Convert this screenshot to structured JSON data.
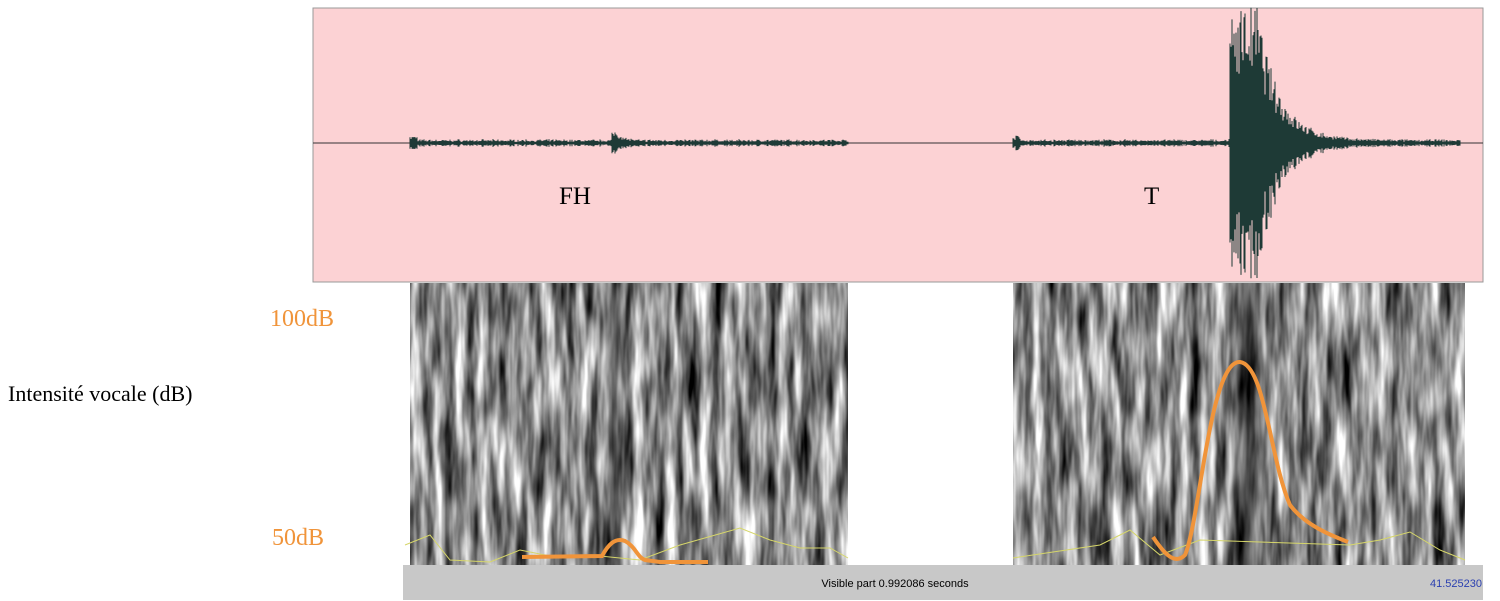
{
  "labels": {
    "fh": "FH",
    "t": "T",
    "db_high": "100dB",
    "db_low": "50dB",
    "axis_label": "Intensité vocale (dB)"
  },
  "status_bar": {
    "visible_part": "Visible part 0.992086 seconds",
    "time": "41.525230"
  }
}
